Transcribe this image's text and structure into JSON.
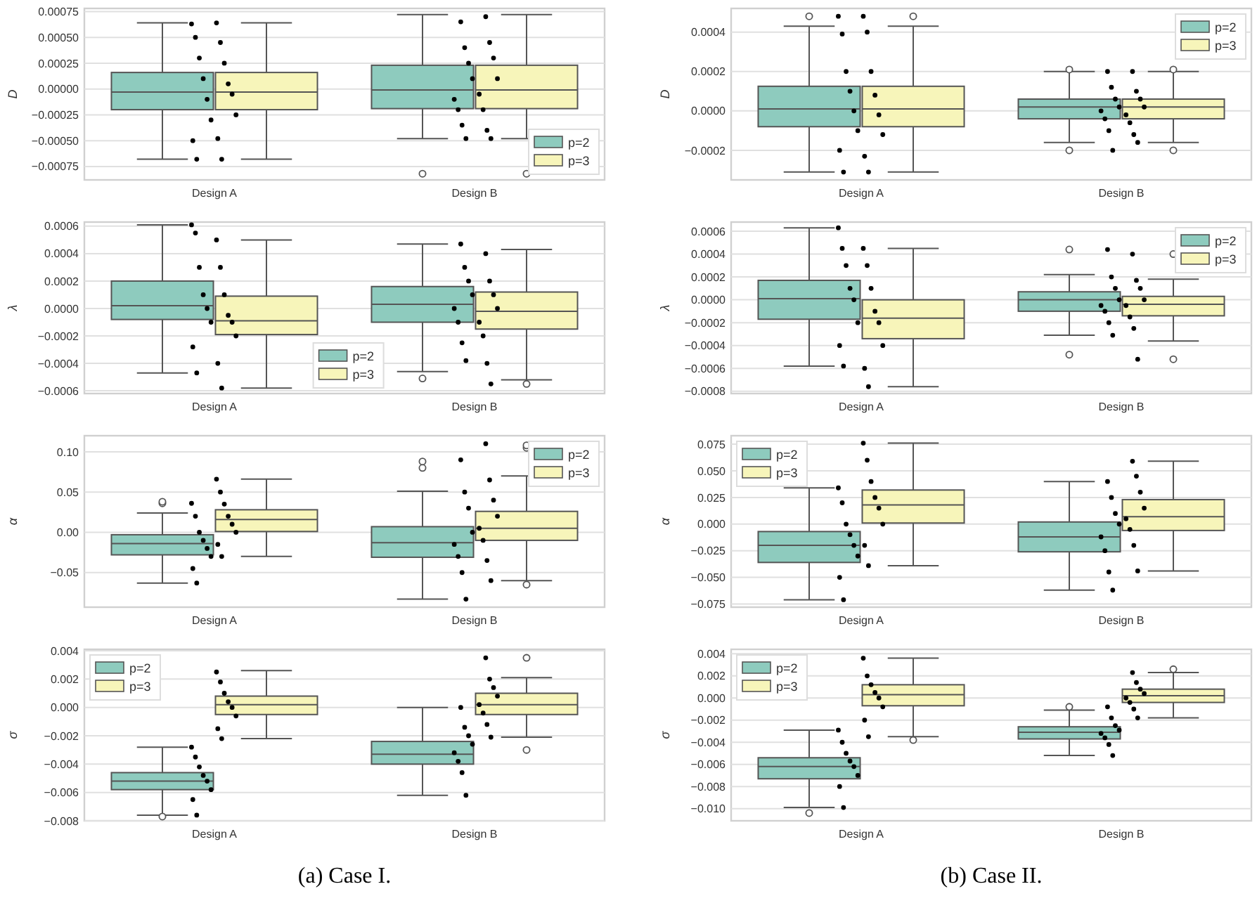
{
  "chart_data": [
    {
      "type": "box",
      "ylabel": "D",
      "categories": [
        "Design A",
        "Design B"
      ],
      "ylim": [
        -0.00088,
        0.00078
      ],
      "yticks": [
        {
          "value": -0.00075,
          "label": "−0.00075"
        },
        {
          "value": -0.0005,
          "label": "−0.00050"
        },
        {
          "value": -0.00025,
          "label": "−0.00025"
        },
        {
          "value": 0,
          "label": "0.00000"
        },
        {
          "value": 0.00025,
          "label": "0.00025"
        },
        {
          "value": 0.0005,
          "label": "0.00050"
        },
        {
          "value": 0.00075,
          "label": "0.00075"
        }
      ],
      "grid": "y",
      "legend": "bottom right",
      "series": [
        {
          "name": "p=2",
          "color": "#8ecbbe",
          "boxes": [
            {
              "low": -0.00068,
              "q1": -0.0002,
              "median": -3e-05,
              "q3": 0.00016,
              "high": 0.00064
            },
            {
              "low": -0.00048,
              "q1": -0.00019,
              "median": -1e-05,
              "q3": 0.00023,
              "high": 0.00072,
              "outliers": [
                -0.00082
              ]
            }
          ]
        },
        {
          "name": "p=3",
          "color": "#f7f5ba",
          "boxes": [
            {
              "low": -0.00068,
              "q1": -0.0002,
              "median": -3e-05,
              "q3": 0.00016,
              "high": 0.00064
            },
            {
              "low": -0.00048,
              "q1": -0.00019,
              "median": -1e-05,
              "q3": 0.00023,
              "high": 0.00072,
              "outliers": [
                -0.00082
              ]
            }
          ]
        },
        {
          "type": "scatter",
          "color": "#000000",
          "marker": "circle",
          "x": [
            "Design A",
            "Design A",
            "Design A",
            "Design A",
            "Design A",
            "Design A",
            "Design A",
            "Design A",
            "Design B",
            "Design B",
            "Design B",
            "Design B",
            "Design B",
            "Design B",
            "Design B",
            "Design B"
          ],
          "values": [
            0.00063,
            0.0005,
            0.0003,
            0.0001,
            -0.0001,
            -0.0003,
            -0.0005,
            -0.00068,
            0.00065,
            0.0004,
            0.00025,
            0.0001,
            -0.0001,
            -0.0002,
            -0.00035,
            -0.00048
          ]
        },
        {
          "type": "scatter",
          "color": "#000000",
          "marker": "circle",
          "x": [
            "Design A",
            "Design A",
            "Design A",
            "Design A",
            "Design A",
            "Design A",
            "Design A",
            "Design A",
            "Design B",
            "Design B",
            "Design B",
            "Design B",
            "Design B",
            "Design B",
            "Design B",
            "Design B"
          ],
          "values": [
            0.00064,
            0.00045,
            0.00025,
            5e-05,
            -5e-05,
            -0.00025,
            -0.00048,
            -0.00068,
            0.0007,
            0.00045,
            0.0003,
            0.0001,
            -5e-05,
            -0.0002,
            -0.0004,
            -0.00048
          ]
        }
      ]
    },
    {
      "type": "box",
      "ylabel": "λ",
      "categories": [
        "Design A",
        "Design B"
      ],
      "ylim": [
        -0.00062,
        0.00063
      ],
      "yticks": [
        {
          "value": -0.0006,
          "label": "−0.0006"
        },
        {
          "value": -0.0004,
          "label": "−0.0004"
        },
        {
          "value": -0.0002,
          "label": "−0.0002"
        },
        {
          "value": 0,
          "label": "0.0000"
        },
        {
          "value": 0.0002,
          "label": "0.0002"
        },
        {
          "value": 0.0004,
          "label": "0.0004"
        },
        {
          "value": 0.0006,
          "label": "0.0006"
        }
      ],
      "grid": "y",
      "legend": "bottom",
      "series": [
        {
          "name": "p=2",
          "color": "#8ecbbe",
          "boxes": [
            {
              "low": -0.00047,
              "q1": -8e-05,
              "median": 2e-05,
              "q3": 0.0002,
              "high": 0.00061
            },
            {
              "low": -0.00046,
              "q1": -0.0001,
              "median": 3e-05,
              "q3": 0.00016,
              "high": 0.00047,
              "outliers": [
                -0.00051
              ]
            }
          ]
        },
        {
          "name": "p=3",
          "color": "#f7f5ba",
          "boxes": [
            {
              "low": -0.00058,
              "q1": -0.00019,
              "median": -9e-05,
              "q3": 9e-05,
              "high": 0.0005
            },
            {
              "low": -0.00052,
              "q1": -0.00015,
              "median": -2e-05,
              "q3": 0.00012,
              "high": 0.00043,
              "outliers": [
                -0.00055
              ]
            }
          ]
        },
        {
          "type": "scatter",
          "color": "#000000",
          "marker": "circle",
          "x": [
            "Design A",
            "Design A",
            "Design A",
            "Design A",
            "Design A",
            "Design A",
            "Design A",
            "Design A",
            "Design B",
            "Design B",
            "Design B",
            "Design B",
            "Design B",
            "Design B",
            "Design B",
            "Design B"
          ],
          "values": [
            0.00061,
            0.00055,
            0.0003,
            0.0001,
            0,
            -0.0001,
            -0.00028,
            -0.00047,
            0.00047,
            0.0003,
            0.0002,
            0.0001,
            0,
            -0.0001,
            -0.00025,
            -0.00038
          ]
        },
        {
          "type": "scatter",
          "color": "#000000",
          "marker": "circle",
          "x": [
            "Design A",
            "Design A",
            "Design A",
            "Design A",
            "Design A",
            "Design A",
            "Design A",
            "Design A",
            "Design B",
            "Design B",
            "Design B",
            "Design B",
            "Design B",
            "Design B",
            "Design B",
            "Design B"
          ],
          "values": [
            0.0005,
            0.0003,
            0.0001,
            -5e-05,
            -0.0001,
            -0.0002,
            -0.0004,
            -0.00058,
            0.0004,
            0.0002,
            0.0001,
            0,
            -0.0001,
            -0.0002,
            -0.0004,
            -0.00055
          ]
        }
      ]
    },
    {
      "type": "box",
      "ylabel": "α",
      "categories": [
        "Design A",
        "Design B"
      ],
      "ylim": [
        -0.093,
        0.12
      ],
      "yticks": [
        {
          "value": -0.05,
          "label": "−0.05"
        },
        {
          "value": 0,
          "label": "0.00"
        },
        {
          "value": 0.05,
          "label": "0.05"
        },
        {
          "value": 0.1,
          "label": "0.10"
        }
      ],
      "grid": "y",
      "legend": "top right",
      "series": [
        {
          "name": "p=2",
          "color": "#8ecbbe",
          "boxes": [
            {
              "low": -0.063,
              "q1": -0.028,
              "median": -0.014,
              "q3": -0.003,
              "high": 0.024,
              "outliers": [
                0.036,
                0.038
              ]
            },
            {
              "low": -0.083,
              "q1": -0.031,
              "median": -0.013,
              "q3": 0.007,
              "high": 0.051,
              "outliers": [
                0.08,
                0.088
              ]
            }
          ]
        },
        {
          "name": "p=3",
          "color": "#f7f5ba",
          "boxes": [
            {
              "low": -0.03,
              "q1": 0.001,
              "median": 0.016,
              "q3": 0.028,
              "high": 0.066
            },
            {
              "low": -0.06,
              "q1": -0.01,
              "median": 0.005,
              "q3": 0.026,
              "high": 0.07,
              "outliers": [
                -0.065,
                0.105,
                0.108
              ]
            }
          ]
        },
        {
          "type": "scatter",
          "color": "#000000",
          "marker": "circle",
          "x": [
            "Design A",
            "Design A",
            "Design A",
            "Design A",
            "Design A",
            "Design A",
            "Design A",
            "Design A",
            "Design B",
            "Design B",
            "Design B",
            "Design B",
            "Design B",
            "Design B",
            "Design B",
            "Design B"
          ],
          "values": [
            0.036,
            0.02,
            0,
            -0.01,
            -0.02,
            -0.03,
            -0.045,
            -0.063,
            0.09,
            0.05,
            0.03,
            0,
            -0.015,
            -0.03,
            -0.05,
            -0.083
          ]
        },
        {
          "type": "scatter",
          "color": "#000000",
          "marker": "circle",
          "x": [
            "Design A",
            "Design A",
            "Design A",
            "Design A",
            "Design A",
            "Design A",
            "Design A",
            "Design A",
            "Design B",
            "Design B",
            "Design B",
            "Design B",
            "Design B",
            "Design B",
            "Design B",
            "Design B"
          ],
          "values": [
            0.066,
            0.05,
            0.035,
            0.02,
            0.01,
            0,
            -0.015,
            -0.03,
            0.11,
            0.065,
            0.04,
            0.02,
            0.005,
            -0.01,
            -0.035,
            -0.06
          ]
        }
      ]
    },
    {
      "type": "box",
      "ylabel": "σ",
      "categories": [
        "Design A",
        "Design B"
      ],
      "ylim": [
        -0.008,
        0.0041
      ],
      "yticks": [
        {
          "value": -0.008,
          "label": "−0.008"
        },
        {
          "value": -0.006,
          "label": "−0.006"
        },
        {
          "value": -0.004,
          "label": "−0.004"
        },
        {
          "value": -0.002,
          "label": "−0.002"
        },
        {
          "value": 0,
          "label": "0.000"
        },
        {
          "value": 0.002,
          "label": "0.002"
        },
        {
          "value": 0.004,
          "label": "0.004"
        }
      ],
      "grid": "y",
      "legend": "top left",
      "annotations": [
        "(a) Case I."
      ],
      "series": [
        {
          "name": "p=2",
          "color": "#8ecbbe",
          "boxes": [
            {
              "low": -0.0076,
              "q1": -0.0058,
              "median": -0.0052,
              "q3": -0.0046,
              "high": -0.0028,
              "outliers": [
                -0.0077
              ]
            },
            {
              "low": -0.0062,
              "q1": -0.004,
              "median": -0.0033,
              "q3": -0.0024,
              "high": 0
            }
          ]
        },
        {
          "name": "p=3",
          "color": "#f7f5ba",
          "boxes": [
            {
              "low": -0.0022,
              "q1": -0.0005,
              "median": 0.0002,
              "q3": 0.0008,
              "high": 0.0026
            },
            {
              "low": -0.0021,
              "q1": -0.0005,
              "median": 0.0002,
              "q3": 0.001,
              "high": 0.0021,
              "outliers": [
                -0.003,
                0.0035
              ]
            }
          ]
        },
        {
          "type": "scatter",
          "color": "#000000",
          "marker": "circle",
          "x": [
            "Design A",
            "Design A",
            "Design A",
            "Design A",
            "Design A",
            "Design A",
            "Design A",
            "Design A",
            "Design B",
            "Design B",
            "Design B",
            "Design B",
            "Design B",
            "Design B",
            "Design B",
            "Design B"
          ],
          "values": [
            -0.0028,
            -0.0035,
            -0.0042,
            -0.0048,
            -0.0052,
            -0.0058,
            -0.0065,
            -0.0076,
            0,
            -0.0014,
            -0.002,
            -0.0026,
            -0.0032,
            -0.0038,
            -0.0046,
            -0.0062
          ]
        },
        {
          "type": "scatter",
          "color": "#000000",
          "marker": "circle",
          "x": [
            "Design A",
            "Design A",
            "Design A",
            "Design A",
            "Design A",
            "Design A",
            "Design A",
            "Design A",
            "Design B",
            "Design B",
            "Design B",
            "Design B",
            "Design B",
            "Design B",
            "Design B",
            "Design B"
          ],
          "values": [
            0.0025,
            0.0018,
            0.001,
            0.0004,
            0,
            -0.0006,
            -0.0015,
            -0.0022,
            0.0035,
            0.002,
            0.0014,
            0.0008,
            0.0002,
            -0.0004,
            -0.0012,
            -0.0021
          ]
        }
      ]
    },
    {
      "type": "box",
      "ylabel": "D",
      "categories": [
        "Design A",
        "Design B"
      ],
      "ylim": [
        -0.00035,
        0.00052
      ],
      "yticks": [
        {
          "value": -0.0002,
          "label": "−0.0002"
        },
        {
          "value": 0,
          "label": "0.0000"
        },
        {
          "value": 0.0002,
          "label": "0.0002"
        },
        {
          "value": 0.0004,
          "label": "0.0004"
        }
      ],
      "grid": "y",
      "legend": "top right",
      "series": [
        {
          "name": "p=2",
          "color": "#8ecbbe",
          "boxes": [
            {
              "low": -0.00031,
              "q1": -8e-05,
              "median": 1e-05,
              "q3": 0.000125,
              "high": 0.00043,
              "outliers": [
                0.00048
              ]
            },
            {
              "low": -0.00016,
              "q1": -4e-05,
              "median": 2e-05,
              "q3": 6e-05,
              "high": 0.0002,
              "outliers": [
                -0.0002,
                0.00021
              ]
            }
          ]
        },
        {
          "name": "p=3",
          "color": "#f7f5ba",
          "boxes": [
            {
              "low": -0.00031,
              "q1": -8e-05,
              "median": 1e-05,
              "q3": 0.000125,
              "high": 0.00043,
              "outliers": [
                0.00048
              ]
            },
            {
              "low": -0.00016,
              "q1": -4e-05,
              "median": 2e-05,
              "q3": 6e-05,
              "high": 0.0002,
              "outliers": [
                -0.0002,
                0.00021
              ]
            }
          ]
        },
        {
          "type": "scatter",
          "color": "#000000",
          "marker": "circle",
          "x": [
            "Design A",
            "Design A",
            "Design A",
            "Design A",
            "Design A",
            "Design A",
            "Design A",
            "Design A",
            "Design B",
            "Design B",
            "Design B",
            "Design B",
            "Design B",
            "Design B",
            "Design B",
            "Design B"
          ],
          "values": [
            0.00048,
            0.00039,
            0.0002,
            0.0001,
            0,
            -0.0001,
            -0.0002,
            -0.00031,
            0.0002,
            0.00012,
            6e-05,
            2e-05,
            0,
            -4e-05,
            -0.0001,
            -0.0002
          ]
        },
        {
          "type": "scatter",
          "color": "#000000",
          "marker": "circle",
          "x": [
            "Design A",
            "Design A",
            "Design A",
            "Design A",
            "Design A",
            "Design A",
            "Design A",
            "Design A",
            "Design B",
            "Design B",
            "Design B",
            "Design B",
            "Design B",
            "Design B",
            "Design B",
            "Design B"
          ],
          "values": [
            0.00048,
            0.0004,
            0.0002,
            8e-05,
            -2e-05,
            -0.00012,
            -0.00023,
            -0.00031,
            0.0002,
            0.0001,
            6e-05,
            2e-05,
            -2e-05,
            -6e-05,
            -0.00012,
            -0.00016
          ]
        }
      ]
    },
    {
      "type": "box",
      "ylabel": "λ",
      "categories": [
        "Design A",
        "Design B"
      ],
      "ylim": [
        -0.00082,
        0.00068
      ],
      "yticks": [
        {
          "value": -0.0008,
          "label": "−0.0008"
        },
        {
          "value": -0.0006,
          "label": "−0.0006"
        },
        {
          "value": -0.0004,
          "label": "−0.0004"
        },
        {
          "value": -0.0002,
          "label": "−0.0002"
        },
        {
          "value": 0,
          "label": "0.0000"
        },
        {
          "value": 0.0002,
          "label": "0.0002"
        },
        {
          "value": 0.0004,
          "label": "0.0004"
        },
        {
          "value": 0.0006,
          "label": "0.0006"
        }
      ],
      "grid": "y",
      "legend": "top right",
      "series": [
        {
          "name": "p=2",
          "color": "#8ecbbe",
          "boxes": [
            {
              "low": -0.00058,
              "q1": -0.00017,
              "median": 1e-05,
              "q3": 0.00017,
              "high": 0.00063
            },
            {
              "low": -0.00031,
              "q1": -0.0001,
              "median": 0,
              "q3": 7e-05,
              "high": 0.00022,
              "outliers": [
                -0.00048,
                0.00044
              ]
            }
          ]
        },
        {
          "name": "p=3",
          "color": "#f7f5ba",
          "boxes": [
            {
              "low": -0.00076,
              "q1": -0.00034,
              "median": -0.00016,
              "q3": 0,
              "high": 0.00045
            },
            {
              "low": -0.00036,
              "q1": -0.00014,
              "median": -4e-05,
              "q3": 3e-05,
              "high": 0.00018,
              "outliers": [
                -0.00052,
                0.0004
              ]
            }
          ]
        },
        {
          "type": "scatter",
          "color": "#000000",
          "marker": "circle",
          "x": [
            "Design A",
            "Design A",
            "Design A",
            "Design A",
            "Design A",
            "Design A",
            "Design A",
            "Design A",
            "Design B",
            "Design B",
            "Design B",
            "Design B",
            "Design B",
            "Design B",
            "Design B",
            "Design B"
          ],
          "values": [
            0.00063,
            0.00045,
            0.0003,
            0.0001,
            0,
            -0.0002,
            -0.0004,
            -0.00058,
            0.00044,
            0.0002,
            0.0001,
            0,
            -5e-05,
            -0.0001,
            -0.0002,
            -0.00031
          ]
        },
        {
          "type": "scatter",
          "color": "#000000",
          "marker": "circle",
          "x": [
            "Design A",
            "Design A",
            "Design A",
            "Design A",
            "Design A",
            "Design A",
            "Design A",
            "Design A",
            "Design B",
            "Design B",
            "Design B",
            "Design B",
            "Design B",
            "Design B",
            "Design B",
            "Design B"
          ],
          "values": [
            0.00045,
            0.0003,
            0.0001,
            -0.0001,
            -0.0002,
            -0.0004,
            -0.0006,
            -0.00076,
            0.0004,
            0.00017,
            0.0001,
            0,
            -5e-05,
            -0.00015,
            -0.00025,
            -0.00052
          ]
        }
      ]
    },
    {
      "type": "box",
      "ylabel": "α",
      "categories": [
        "Design A",
        "Design B"
      ],
      "ylim": [
        -0.078,
        0.083
      ],
      "yticks": [
        {
          "value": -0.075,
          "label": "−0.075"
        },
        {
          "value": -0.05,
          "label": "−0.050"
        },
        {
          "value": -0.025,
          "label": "−0.025"
        },
        {
          "value": 0,
          "label": "0.000"
        },
        {
          "value": 0.025,
          "label": "0.025"
        },
        {
          "value": 0.05,
          "label": "0.050"
        },
        {
          "value": 0.075,
          "label": "0.075"
        }
      ],
      "grid": "y",
      "legend": "top left",
      "series": [
        {
          "name": "p=2",
          "color": "#8ecbbe",
          "boxes": [
            {
              "low": -0.071,
              "q1": -0.036,
              "median": -0.02,
              "q3": -0.007,
              "high": 0.034
            },
            {
              "low": -0.062,
              "q1": -0.026,
              "median": -0.012,
              "q3": 0.002,
              "high": 0.04
            }
          ]
        },
        {
          "name": "p=3",
          "color": "#f7f5ba",
          "boxes": [
            {
              "low": -0.039,
              "q1": 0.001,
              "median": 0.018,
              "q3": 0.032,
              "high": 0.076
            },
            {
              "low": -0.044,
              "q1": -0.006,
              "median": 0.007,
              "q3": 0.023,
              "high": 0.059
            }
          ]
        },
        {
          "type": "scatter",
          "color": "#000000",
          "marker": "circle",
          "x": [
            "Design A",
            "Design A",
            "Design A",
            "Design A",
            "Design A",
            "Design A",
            "Design A",
            "Design A",
            "Design B",
            "Design B",
            "Design B",
            "Design B",
            "Design B",
            "Design B",
            "Design B",
            "Design B"
          ],
          "values": [
            0.034,
            0.02,
            0,
            -0.01,
            -0.02,
            -0.03,
            -0.05,
            -0.071,
            0.04,
            0.025,
            0.01,
            0,
            -0.012,
            -0.025,
            -0.045,
            -0.062
          ]
        },
        {
          "type": "scatter",
          "color": "#000000",
          "marker": "circle",
          "x": [
            "Design A",
            "Design A",
            "Design A",
            "Design A",
            "Design A",
            "Design A",
            "Design A",
            "Design A",
            "Design B",
            "Design B",
            "Design B",
            "Design B",
            "Design B",
            "Design B",
            "Design B",
            "Design B"
          ],
          "values": [
            0.076,
            0.06,
            0.04,
            0.025,
            0.015,
            0,
            -0.02,
            -0.039,
            0.059,
            0.045,
            0.03,
            0.015,
            0.005,
            -0.005,
            -0.02,
            -0.044
          ]
        }
      ]
    },
    {
      "type": "box",
      "ylabel": "σ",
      "categories": [
        "Design A",
        "Design B"
      ],
      "ylim": [
        -0.0111,
        0.0044
      ],
      "yticks": [
        {
          "value": -0.01,
          "label": "−0.010"
        },
        {
          "value": -0.008,
          "label": "−0.008"
        },
        {
          "value": -0.006,
          "label": "−0.006"
        },
        {
          "value": -0.004,
          "label": "−0.004"
        },
        {
          "value": -0.002,
          "label": "−0.002"
        },
        {
          "value": 0,
          "label": "0.000"
        },
        {
          "value": 0.002,
          "label": "0.002"
        },
        {
          "value": 0.004,
          "label": "0.004"
        }
      ],
      "grid": "y",
      "legend": "top left",
      "annotations": [
        "(b) Case II."
      ],
      "series": [
        {
          "name": "p=2",
          "color": "#8ecbbe",
          "boxes": [
            {
              "low": -0.0099,
              "q1": -0.0073,
              "median": -0.0062,
              "q3": -0.0054,
              "high": -0.0029,
              "outliers": [
                -0.0104
              ]
            },
            {
              "low": -0.0052,
              "q1": -0.0037,
              "median": -0.0031,
              "q3": -0.0026,
              "high": -0.0011,
              "outliers": [
                -0.0008
              ]
            }
          ]
        },
        {
          "name": "p=3",
          "color": "#f7f5ba",
          "boxes": [
            {
              "low": -0.0035,
              "q1": -0.0007,
              "median": 0.0003,
              "q3": 0.0012,
              "high": 0.0036,
              "outliers": [
                -0.0038
              ]
            },
            {
              "low": -0.0018,
              "q1": -0.0004,
              "median": 0.0002,
              "q3": 0.0008,
              "high": 0.0023,
              "outliers": [
                0.0026
              ]
            }
          ]
        },
        {
          "type": "scatter",
          "color": "#000000",
          "marker": "circle",
          "x": [
            "Design A",
            "Design A",
            "Design A",
            "Design A",
            "Design A",
            "Design A",
            "Design A",
            "Design A",
            "Design B",
            "Design B",
            "Design B",
            "Design B",
            "Design B",
            "Design B",
            "Design B",
            "Design B"
          ],
          "values": [
            -0.0029,
            -0.004,
            -0.005,
            -0.0057,
            -0.0062,
            -0.007,
            -0.008,
            -0.0099,
            -0.0008,
            -0.0018,
            -0.0025,
            -0.0029,
            -0.0032,
            -0.0036,
            -0.0042,
            -0.0052
          ]
        },
        {
          "type": "scatter",
          "color": "#000000",
          "marker": "circle",
          "x": [
            "Design A",
            "Design A",
            "Design A",
            "Design A",
            "Design A",
            "Design A",
            "Design A",
            "Design A",
            "Design B",
            "Design B",
            "Design B",
            "Design B",
            "Design B",
            "Design B",
            "Design B",
            "Design B"
          ],
          "values": [
            0.0036,
            0.002,
            0.0012,
            0.0005,
            0,
            -0.0008,
            -0.002,
            -0.0035,
            0.0023,
            0.0014,
            0.0008,
            0.0004,
            0,
            -0.0004,
            -0.001,
            -0.0018
          ]
        }
      ]
    }
  ]
}
